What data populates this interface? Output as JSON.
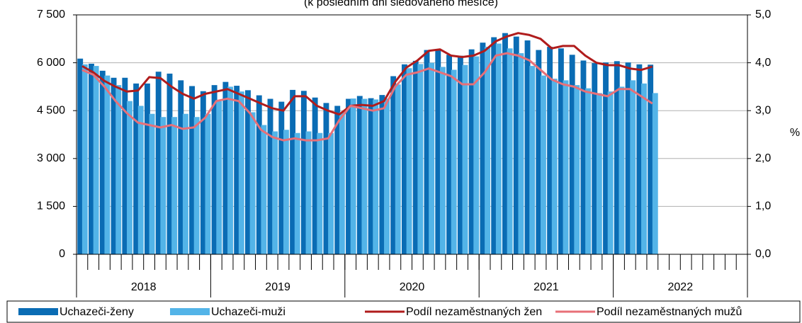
{
  "chart_data": {
    "type": "bar-line",
    "subtitle": "(k posledním dni sledovaného měsíce)",
    "y2_label": "%",
    "categories": [
      null,
      null,
      null,
      null,
      null,
      null,
      null,
      null,
      null,
      null,
      null,
      null,
      null,
      null,
      null,
      null,
      null,
      null,
      null,
      null,
      null,
      null,
      null,
      null,
      null,
      null,
      null,
      null,
      null,
      null,
      null,
      null,
      null,
      null,
      null,
      null,
      null,
      null,
      null,
      null,
      null,
      null,
      null,
      null,
      null,
      null,
      null,
      null,
      null,
      null,
      null,
      null,
      null,
      null,
      null,
      null,
      null,
      null,
      null,
      null
    ],
    "x_groups": [
      "2018",
      "2019",
      "2020",
      "2021",
      "2022"
    ],
    "ylim": [
      0,
      7500
    ],
    "yticks": [
      0,
      {
        "value": 1500,
        "label": "1 500"
      },
      {
        "value": 3000,
        "label": "3 000"
      },
      {
        "value": 4500,
        "label": "4 500"
      },
      {
        "value": 6000,
        "label": "6 000"
      },
      {
        "value": 7500,
        "label": "7 500"
      }
    ],
    "y2lim": [
      0,
      5
    ],
    "y2ticks": [
      {
        "value": 0,
        "label": "0,0"
      },
      {
        "value": 1,
        "label": "1,0"
      },
      {
        "value": 2,
        "label": "2,0"
      },
      {
        "value": 3,
        "label": "3,0"
      },
      {
        "value": 4,
        "label": "4,0"
      },
      {
        "value": 5,
        "label": "5,0"
      }
    ],
    "grid": true,
    "series": [
      {
        "name": "Uchazeči-ženy",
        "kind": "bar",
        "color": "#0a6cb4",
        "values": [
          6130,
          5970,
          5750,
          5530,
          5530,
          5350,
          5350,
          5720,
          5660,
          5450,
          5270,
          5110,
          5300,
          5400,
          5280,
          5140,
          4980,
          4870,
          4780,
          5150,
          5120,
          4910,
          4740,
          4650,
          4870,
          4960,
          4890,
          4990,
          5580,
          5950,
          6060,
          6400,
          6420,
          6250,
          6220,
          6420,
          6630,
          6800,
          6930,
          6820,
          6700,
          6400,
          6500,
          6450,
          6250,
          6070,
          5990,
          6010,
          6050,
          6010,
          5950,
          5940,
          null,
          null,
          null,
          null,
          null,
          null,
          null,
          null
        ]
      },
      {
        "name": "Uchazeči-muži",
        "kind": "bar",
        "color": "#53b4e8",
        "values": [
          5950,
          5900,
          5600,
          5300,
          4800,
          4650,
          4400,
          4300,
          4300,
          4400,
          4300,
          4400,
          4800,
          5250,
          5100,
          4450,
          4050,
          3850,
          3900,
          3800,
          3850,
          3800,
          3800,
          4450,
          4880,
          4870,
          4850,
          4880,
          5320,
          5830,
          5960,
          6000,
          5870,
          5780,
          5930,
          6200,
          6500,
          6600,
          6450,
          6300,
          5900,
          5600,
          5500,
          5450,
          5300,
          5200,
          5050,
          5100,
          5250,
          5450,
          5350,
          5050,
          null,
          null,
          null,
          null,
          null,
          null,
          null,
          null
        ]
      },
      {
        "name": "Podíl nezaměstnaných žen",
        "kind": "line",
        "axis": "y2",
        "color": "#b01c1c",
        "values": [
          3.93,
          3.8,
          3.62,
          3.5,
          3.4,
          3.42,
          3.7,
          3.68,
          3.5,
          3.35,
          3.25,
          3.35,
          3.4,
          3.45,
          3.35,
          3.25,
          3.15,
          3.05,
          3.0,
          3.3,
          3.3,
          3.1,
          3.0,
          2.92,
          3.1,
          3.12,
          3.1,
          3.2,
          3.6,
          3.9,
          4.05,
          4.25,
          4.28,
          4.15,
          4.12,
          4.15,
          4.25,
          4.45,
          4.55,
          4.62,
          4.58,
          4.5,
          4.3,
          4.35,
          4.35,
          4.15,
          4.0,
          3.95,
          3.95,
          3.88,
          3.85,
          3.92,
          null,
          null,
          null,
          null,
          null,
          null,
          null,
          null
        ]
      },
      {
        "name": "Podíl nezaměstnaných mužů",
        "kind": "line",
        "axis": "y2",
        "color": "#e87078",
        "values": [
          3.85,
          3.75,
          3.5,
          3.2,
          2.95,
          2.75,
          2.7,
          2.65,
          2.7,
          2.62,
          2.65,
          2.85,
          3.2,
          3.25,
          3.2,
          2.95,
          2.6,
          2.45,
          2.38,
          2.42,
          2.38,
          2.38,
          2.42,
          2.8,
          3.1,
          3.05,
          3.0,
          3.05,
          3.5,
          3.75,
          3.8,
          3.88,
          3.8,
          3.72,
          3.55,
          3.55,
          3.8,
          4.15,
          4.2,
          4.15,
          4.05,
          3.85,
          3.65,
          3.55,
          3.5,
          3.4,
          3.35,
          3.3,
          3.45,
          3.45,
          3.3,
          3.15,
          null,
          null,
          null,
          null,
          null,
          null,
          null,
          null
        ]
      }
    ]
  }
}
